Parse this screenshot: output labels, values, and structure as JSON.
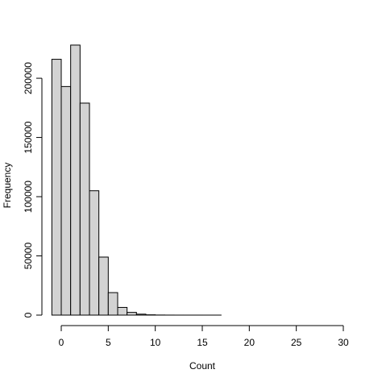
{
  "chart_data": {
    "type": "bar",
    "bin_width": 1,
    "bins": [
      {
        "start": -1,
        "end": 0,
        "count": 216000
      },
      {
        "start": 0,
        "end": 1,
        "count": 193000
      },
      {
        "start": 1,
        "end": 2,
        "count": 228000
      },
      {
        "start": 2,
        "end": 3,
        "count": 179000
      },
      {
        "start": 3,
        "end": 4,
        "count": 105000
      },
      {
        "start": 4,
        "end": 5,
        "count": 49000
      },
      {
        "start": 5,
        "end": 6,
        "count": 19000
      },
      {
        "start": 6,
        "end": 7,
        "count": 6500
      },
      {
        "start": 7,
        "end": 8,
        "count": 2300
      },
      {
        "start": 8,
        "end": 9,
        "count": 800
      },
      {
        "start": 9,
        "end": 10,
        "count": 250
      },
      {
        "start": 10,
        "end": 11,
        "count": 80
      },
      {
        "start": 11,
        "end": 12,
        "count": 30
      },
      {
        "start": 12,
        "end": 13,
        "count": 10
      },
      {
        "start": 13,
        "end": 14,
        "count": 5
      },
      {
        "start": 14,
        "end": 15,
        "count": 2
      },
      {
        "start": 15,
        "end": 16,
        "count": 1
      },
      {
        "start": 16,
        "end": 17,
        "count": 1
      },
      {
        "start": 17,
        "end": 18,
        "count": 0
      },
      {
        "start": 18,
        "end": 19,
        "count": 0
      },
      {
        "start": 19,
        "end": 20,
        "count": 0
      },
      {
        "start": 20,
        "end": 21,
        "count": 0
      },
      {
        "start": 21,
        "end": 22,
        "count": 0
      },
      {
        "start": 22,
        "end": 23,
        "count": 0
      },
      {
        "start": 23,
        "end": 24,
        "count": 0
      },
      {
        "start": 24,
        "end": 25,
        "count": 0
      },
      {
        "start": 25,
        "end": 26,
        "count": 0
      },
      {
        "start": 26,
        "end": 27,
        "count": 0
      },
      {
        "start": 27,
        "end": 28,
        "count": 0
      },
      {
        "start": 28,
        "end": 29,
        "count": 0
      },
      {
        "start": 29,
        "end": 30,
        "count": 0
      }
    ],
    "title": "",
    "xlabel": "Count",
    "ylabel": "Frequency",
    "xlim": [
      -1,
      30
    ],
    "ylim": [
      0,
      230000
    ],
    "x_ticks": [
      0,
      5,
      10,
      15,
      20,
      25,
      30
    ],
    "x_tick_labels": [
      "0",
      "5",
      "10",
      "15",
      "20",
      "25",
      "30"
    ],
    "y_ticks": [
      0,
      50000,
      100000,
      150000,
      200000
    ],
    "y_tick_labels": [
      "0",
      "50000",
      "100000",
      "150000",
      "200000"
    ],
    "grid": false,
    "colors": {
      "bar_fill": "#d3d3d3",
      "bar_stroke": "#000000"
    }
  }
}
